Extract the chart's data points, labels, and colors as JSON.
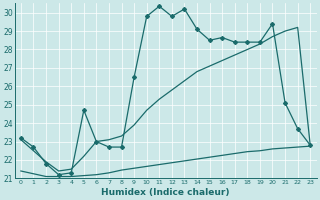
{
  "xlabel": "Humidex (Indice chaleur)",
  "bg_color": "#cce8e8",
  "line_color": "#1a6b6b",
  "xlim": [
    -0.5,
    23.5
  ],
  "ylim": [
    21,
    30.5
  ],
  "yticks": [
    21,
    22,
    23,
    24,
    25,
    26,
    27,
    28,
    29,
    30
  ],
  "xticks": [
    0,
    1,
    2,
    3,
    4,
    5,
    6,
    7,
    8,
    9,
    10,
    11,
    12,
    13,
    14,
    15,
    16,
    17,
    18,
    19,
    20,
    21,
    22,
    23
  ],
  "s1_x": [
    0,
    1,
    2,
    3,
    4,
    5,
    6,
    7,
    8,
    9,
    10,
    11,
    12,
    13,
    14,
    15,
    16,
    17,
    18,
    19,
    20,
    21,
    22,
    23
  ],
  "s1_y": [
    23.2,
    22.7,
    21.8,
    21.2,
    21.3,
    24.7,
    23.0,
    22.7,
    22.7,
    26.5,
    29.8,
    30.35,
    29.8,
    30.2,
    29.1,
    28.5,
    28.65,
    28.4,
    28.4,
    28.4,
    29.4,
    25.1,
    23.7,
    22.8
  ],
  "s2_x": [
    0,
    2,
    3,
    4,
    5,
    6,
    7,
    8,
    9,
    10,
    11,
    12,
    13,
    14,
    15,
    16,
    17,
    18,
    19,
    20,
    21,
    22,
    23
  ],
  "s2_y": [
    23.1,
    21.9,
    21.4,
    21.5,
    22.2,
    23.0,
    23.1,
    23.3,
    23.9,
    24.7,
    25.3,
    25.8,
    26.3,
    26.8,
    27.1,
    27.4,
    27.7,
    28.0,
    28.3,
    28.7,
    29.0,
    29.2,
    22.8
  ],
  "s3_x": [
    0,
    2,
    3,
    4,
    5,
    6,
    7,
    8,
    9,
    10,
    11,
    12,
    13,
    14,
    15,
    16,
    17,
    18,
    19,
    20,
    21,
    22,
    23
  ],
  "s3_y": [
    21.4,
    21.1,
    21.1,
    21.1,
    21.15,
    21.2,
    21.3,
    21.45,
    21.55,
    21.65,
    21.75,
    21.85,
    21.95,
    22.05,
    22.15,
    22.25,
    22.35,
    22.45,
    22.5,
    22.6,
    22.65,
    22.7,
    22.75
  ]
}
